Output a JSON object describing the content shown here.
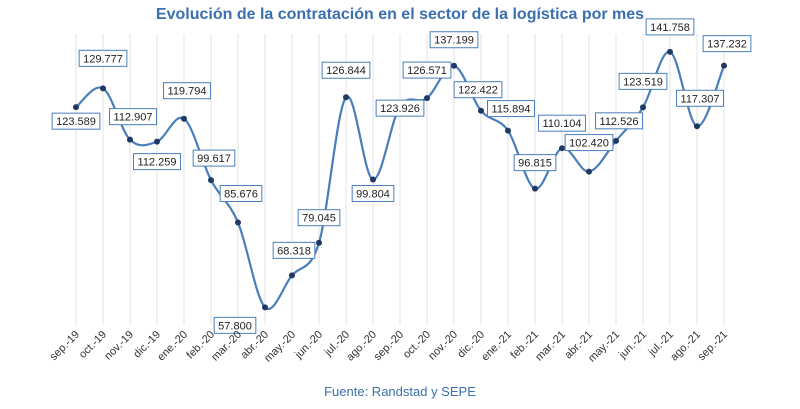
{
  "chart_data": {
    "type": "line",
    "title": "Evolución de la contratación en el sector de la logística por mes",
    "source": "Fuente: Randstad y SEPE",
    "categories": [
      "sep.-19",
      "oct.-19",
      "nov.-19",
      "dic.-19",
      "ene.-20",
      "feb.-20",
      "mar.-20",
      "abr.-20",
      "may.-20",
      "jun.-20",
      "jul.-20",
      "ago.-20",
      "sep.-20",
      "oct.-20",
      "nov.-20",
      "dic.-20",
      "ene.-21",
      "feb.-21",
      "mar.-21",
      "abr.-21",
      "may.-21",
      "jun.-21",
      "jul.-21",
      "ago.-21",
      "sep.-21"
    ],
    "values": [
      123589,
      129777,
      112907,
      112259,
      119794,
      99617,
      85676,
      57800,
      68318,
      79045,
      126844,
      99804,
      123926,
      126571,
      137199,
      122422,
      115894,
      96815,
      110104,
      102420,
      112526,
      123519,
      141758,
      117307,
      137232
    ],
    "point_labels": [
      {
        "index": 0,
        "text": "123.589"
      },
      {
        "index": 1,
        "text": "129.777"
      },
      {
        "index": 2,
        "text": "112.907"
      },
      {
        "index": 3,
        "text": "112.259"
      },
      {
        "index": 4,
        "text": "119.794"
      },
      {
        "index": 5,
        "text": "99.617"
      },
      {
        "index": 6,
        "text": "85.676"
      },
      {
        "index": 7,
        "text": "57.800"
      },
      {
        "index": 8,
        "text": "68.318"
      },
      {
        "index": 9,
        "text": "79.045"
      },
      {
        "index": 10,
        "text": "126.844"
      },
      {
        "index": 11,
        "text": "99.804"
      },
      {
        "index": 12,
        "text": "123.926"
      },
      {
        "index": 13,
        "text": "126.571"
      },
      {
        "index": 14,
        "text": "137.199"
      },
      {
        "index": 15,
        "text": "122.422"
      },
      {
        "index": 16,
        "text": "115.894"
      },
      {
        "index": 17,
        "text": "96.815"
      },
      {
        "index": 18,
        "text": "110.104"
      },
      {
        "index": 19,
        "text": "102.420"
      },
      {
        "index": 20,
        "text": "112.526"
      },
      {
        "index": 21,
        "text": "123.519"
      },
      {
        "index": 22,
        "text": "141.758"
      },
      {
        "index": 23,
        "text": "117.307"
      },
      {
        "index": 24,
        "text": "137.232"
      }
    ],
    "ylim": [
      52000,
      145000
    ],
    "grid": "vertical",
    "xlabel": "",
    "ylabel": "",
    "colors": {
      "line": "#4a7ebb",
      "marker": "#1f3864",
      "label_border": "#4a7ebb",
      "title": "#3a6fb0"
    }
  }
}
